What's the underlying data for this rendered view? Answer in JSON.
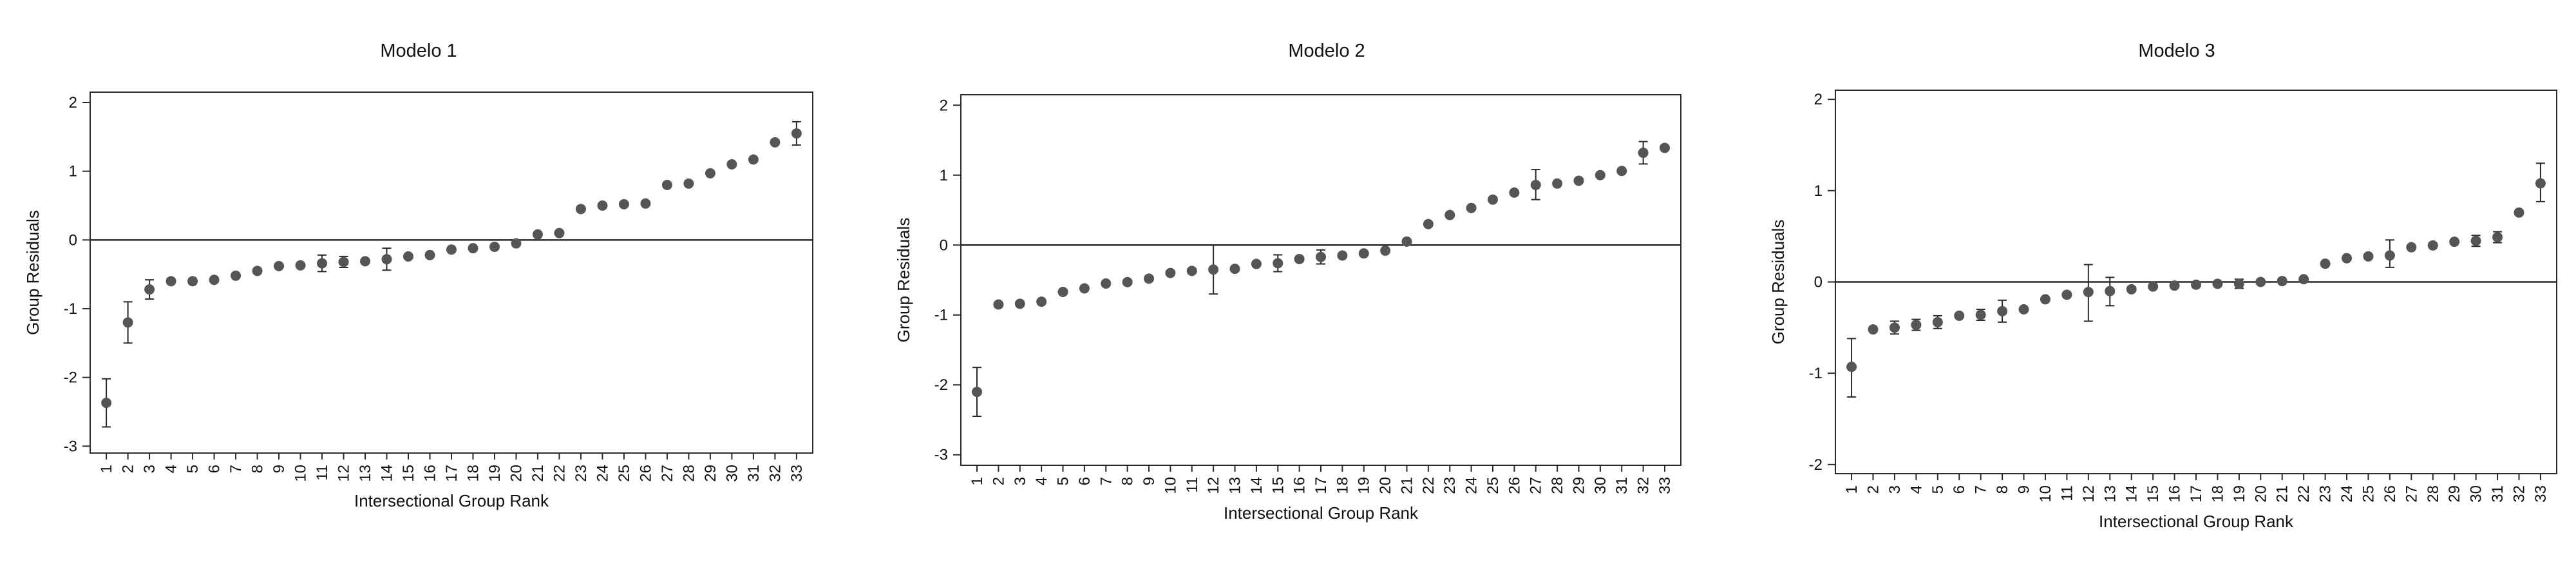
{
  "chart_data": [
    {
      "type": "scatter",
      "title": "Modelo 1",
      "xlabel": "Intersectional Group Rank",
      "ylabel": "Group Residuals",
      "x": [
        1,
        2,
        3,
        4,
        5,
        6,
        7,
        8,
        9,
        10,
        11,
        12,
        13,
        14,
        15,
        16,
        17,
        18,
        19,
        20,
        21,
        22,
        23,
        24,
        25,
        26,
        27,
        28,
        29,
        30,
        31,
        32,
        33
      ],
      "x_tick_labels": [
        "1",
        "2",
        "3",
        "4",
        "5",
        "6",
        "7",
        "8",
        "9",
        "10",
        "11",
        "12",
        "13",
        "14",
        "15",
        "16",
        "17",
        "18",
        "19",
        "20",
        "21",
        "22",
        "23",
        "24",
        "25",
        "26",
        "27",
        "28",
        "29",
        "30",
        "31",
        "32",
        "33"
      ],
      "y_ticks": [
        -3,
        -2,
        -1,
        0,
        1,
        2
      ],
      "y_tick_labels": [
        "-3",
        "-2",
        "-1",
        "0",
        "1",
        "2"
      ],
      "ylim": [
        -3.1,
        2.15
      ],
      "reference_line": 0,
      "grid": false,
      "values": [
        -2.37,
        -1.2,
        -0.72,
        -0.6,
        -0.6,
        -0.58,
        -0.52,
        -0.45,
        -0.38,
        -0.37,
        -0.34,
        -0.32,
        -0.31,
        -0.28,
        -0.24,
        -0.22,
        -0.14,
        -0.12,
        -0.1,
        -0.05,
        0.08,
        0.1,
        0.45,
        0.5,
        0.52,
        0.53,
        0.8,
        0.82,
        0.97,
        1.1,
        1.17,
        1.42,
        1.55
      ],
      "ci_low": [
        -2.72,
        -1.5,
        -0.86,
        -0.66,
        -0.64,
        -0.62,
        -0.56,
        -0.49,
        -0.42,
        -0.41,
        -0.46,
        -0.4,
        -0.35,
        -0.44,
        -0.28,
        -0.26,
        -0.2,
        -0.16,
        -0.14,
        -0.09,
        0.04,
        0.06,
        0.41,
        0.46,
        0.48,
        0.49,
        0.76,
        0.78,
        0.93,
        1.06,
        1.13,
        1.38,
        1.38
      ],
      "ci_high": [
        -2.02,
        -0.9,
        -0.58,
        -0.54,
        -0.56,
        -0.54,
        -0.48,
        -0.41,
        -0.34,
        -0.33,
        -0.22,
        -0.24,
        -0.27,
        -0.12,
        -0.2,
        -0.18,
        -0.08,
        -0.08,
        -0.06,
        -0.01,
        0.12,
        0.14,
        0.49,
        0.54,
        0.56,
        0.57,
        0.84,
        0.86,
        1.01,
        1.14,
        1.21,
        1.46,
        1.72
      ]
    },
    {
      "type": "scatter",
      "title": "Modelo 2",
      "xlabel": "Intersectional Group Rank",
      "ylabel": "Group Residuals",
      "x": [
        1,
        2,
        3,
        4,
        5,
        6,
        7,
        8,
        9,
        10,
        11,
        12,
        13,
        14,
        15,
        16,
        17,
        18,
        19,
        20,
        21,
        22,
        23,
        24,
        25,
        26,
        27,
        28,
        29,
        30,
        31,
        32,
        33
      ],
      "x_tick_labels": [
        "1",
        "2",
        "3",
        "4",
        "5",
        "6",
        "7",
        "8",
        "9",
        "10",
        "11",
        "12",
        "13",
        "14",
        "15",
        "16",
        "17",
        "18",
        "19",
        "20",
        "21",
        "22",
        "23",
        "24",
        "25",
        "26",
        "27",
        "28",
        "29",
        "30",
        "31",
        "32",
        "33"
      ],
      "y_ticks": [
        -3,
        -2,
        -1,
        0,
        1,
        2
      ],
      "y_tick_labels": [
        "-3",
        "-2",
        "-1",
        "0",
        "1",
        "2"
      ],
      "ylim": [
        -3.15,
        2.15
      ],
      "reference_line": 0,
      "grid": false,
      "values": [
        -2.1,
        -0.85,
        -0.84,
        -0.81,
        -0.67,
        -0.62,
        -0.55,
        -0.53,
        -0.48,
        -0.4,
        -0.37,
        -0.35,
        -0.34,
        -0.27,
        -0.26,
        -0.2,
        -0.17,
        -0.15,
        -0.12,
        -0.08,
        0.05,
        0.3,
        0.43,
        0.53,
        0.65,
        0.75,
        0.86,
        0.88,
        0.92,
        1.0,
        1.06,
        1.32,
        1.39
      ],
      "ci_low": [
        -2.45,
        -0.89,
        -0.88,
        -0.85,
        -0.71,
        -0.66,
        -0.59,
        -0.57,
        -0.54,
        -0.44,
        -0.41,
        -0.7,
        -0.38,
        -0.33,
        -0.38,
        -0.24,
        -0.27,
        -0.19,
        -0.16,
        -0.12,
        0.01,
        0.26,
        0.39,
        0.49,
        0.61,
        0.71,
        0.65,
        0.84,
        0.88,
        0.96,
        1.02,
        1.16,
        1.35
      ],
      "ci_high": [
        -1.75,
        -0.81,
        -0.8,
        -0.77,
        -0.63,
        -0.58,
        -0.51,
        -0.49,
        -0.42,
        -0.36,
        -0.33,
        0.0,
        -0.3,
        -0.21,
        -0.14,
        -0.16,
        -0.07,
        -0.11,
        -0.08,
        -0.04,
        0.09,
        0.34,
        0.47,
        0.57,
        0.69,
        0.79,
        1.08,
        0.92,
        0.96,
        1.04,
        1.1,
        1.48,
        1.43
      ]
    },
    {
      "type": "scatter",
      "title": "Modelo 3",
      "xlabel": "Intersectional Group Rank",
      "ylabel": "Group Residuals",
      "x": [
        1,
        2,
        3,
        4,
        5,
        6,
        7,
        8,
        9,
        10,
        11,
        12,
        13,
        14,
        15,
        16,
        17,
        18,
        19,
        20,
        21,
        22,
        23,
        24,
        25,
        26,
        27,
        28,
        29,
        30,
        31,
        32,
        33
      ],
      "x_tick_labels": [
        "1",
        "2",
        "3",
        "4",
        "5",
        "6",
        "7",
        "8",
        "9",
        "10",
        "11",
        "12",
        "13",
        "14",
        "15",
        "16",
        "17",
        "18",
        "19",
        "20",
        "21",
        "22",
        "23",
        "24",
        "25",
        "26",
        "27",
        "28",
        "29",
        "30",
        "31",
        "32",
        "33"
      ],
      "y_ticks": [
        -2,
        -1,
        0,
        1,
        2
      ],
      "y_tick_labels": [
        "-2",
        "-1",
        "0",
        "1",
        "2"
      ],
      "ylim": [
        -2.1,
        2.1
      ],
      "reference_line": 0,
      "grid": false,
      "values": [
        -0.93,
        -0.52,
        -0.5,
        -0.47,
        -0.44,
        -0.37,
        -0.36,
        -0.32,
        -0.3,
        -0.19,
        -0.14,
        -0.11,
        -0.1,
        -0.08,
        -0.05,
        -0.04,
        -0.03,
        -0.02,
        -0.02,
        0.0,
        0.01,
        0.03,
        0.2,
        0.26,
        0.28,
        0.29,
        0.38,
        0.4,
        0.44,
        0.45,
        0.49,
        0.76,
        1.08
      ],
      "ci_low": [
        -1.26,
        -0.56,
        -0.57,
        -0.53,
        -0.51,
        -0.41,
        -0.42,
        -0.44,
        -0.34,
        -0.23,
        -0.18,
        -0.43,
        -0.26,
        -0.12,
        -0.09,
        -0.08,
        -0.07,
        -0.06,
        -0.07,
        -0.04,
        -0.03,
        -0.01,
        0.16,
        0.22,
        0.24,
        0.16,
        0.34,
        0.36,
        0.4,
        0.39,
        0.43,
        0.72,
        0.88
      ],
      "ci_high": [
        -0.62,
        -0.48,
        -0.43,
        -0.41,
        -0.37,
        -0.33,
        -0.3,
        -0.2,
        -0.26,
        -0.15,
        -0.1,
        0.19,
        0.05,
        -0.04,
        -0.01,
        0.0,
        0.01,
        0.02,
        0.03,
        0.04,
        0.05,
        0.07,
        0.24,
        0.3,
        0.32,
        0.46,
        0.42,
        0.44,
        0.48,
        0.51,
        0.55,
        0.8,
        1.3
      ]
    }
  ]
}
